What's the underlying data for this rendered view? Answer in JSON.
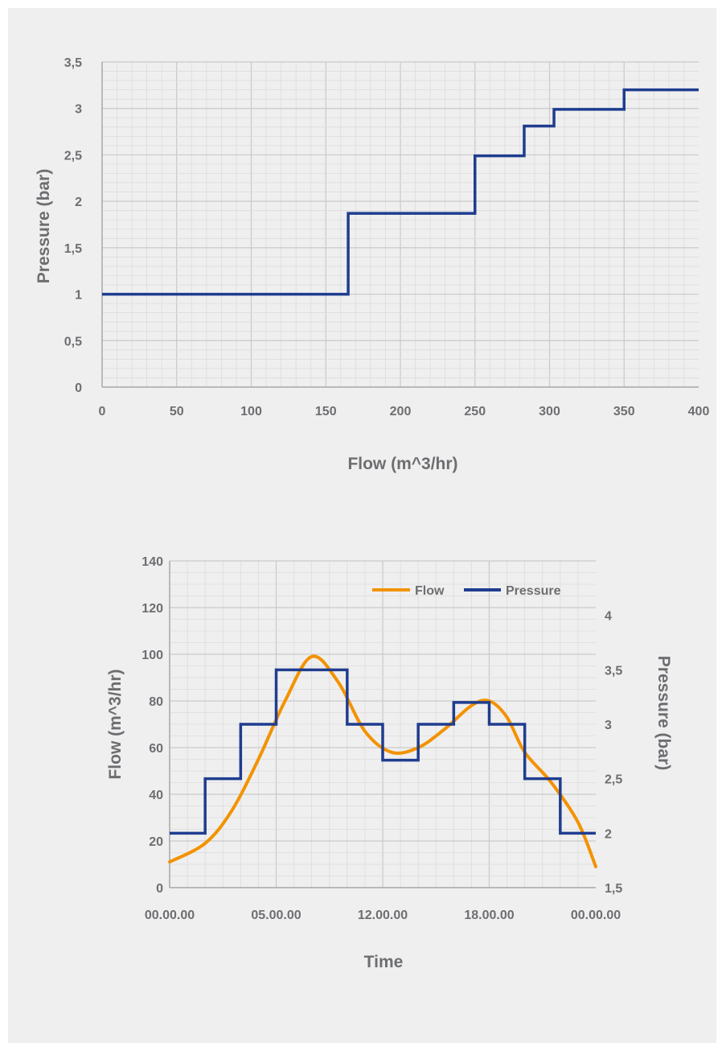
{
  "chart_data": [
    {
      "type": "line",
      "step": true,
      "xlabel": "Flow (m^3/hr)",
      "ylabel": "Pressure (bar)",
      "xlim": [
        0,
        400
      ],
      "ylim": [
        0,
        3.5
      ],
      "xticks": [
        "0",
        "50",
        "100",
        "150",
        "200",
        "250",
        "300",
        "350",
        "400"
      ],
      "yticks": [
        "0",
        "0,5",
        "1",
        "1,5",
        "2",
        "2,5",
        "3",
        "3,5"
      ],
      "grid": true,
      "series": [
        {
          "x": [
            0,
            165,
            165,
            250,
            250,
            283,
            283,
            303,
            303,
            350,
            350,
            400
          ],
          "y": [
            1.0,
            1.0,
            1.87,
            1.87,
            2.49,
            2.49,
            2.81,
            2.81,
            2.99,
            2.99,
            3.2,
            3.2
          ]
        }
      ]
    },
    {
      "type": "line",
      "xlabel": "Time",
      "ylabel": "Flow (m^3/hr)",
      "ylabel_right": "Pressure (bar)",
      "xticks": [
        "00.00.00",
        "05.00.00",
        "12.00.00",
        "18.00.00",
        "00.00.00"
      ],
      "xlim": [
        0,
        24
      ],
      "ylim": [
        0,
        140
      ],
      "ylim_right": [
        1.5,
        4.5
      ],
      "yticks": [
        "0",
        "20",
        "40",
        "60",
        "80",
        "100",
        "120",
        "140"
      ],
      "yticks_right": [
        "1,5",
        "2",
        "2,5",
        "3",
        "3,5",
        "4"
      ],
      "grid": true,
      "legend": "top-right",
      "series": [
        {
          "name": "Flow",
          "axis": "left",
          "color": "#f39200",
          "x": [
            0,
            2,
            3.5,
            5,
            6.5,
            8,
            9.5,
            11,
            12.5,
            14,
            15.5,
            17,
            18,
            19,
            20,
            21.5,
            23,
            24
          ],
          "y": [
            11,
            19,
            33,
            55,
            80,
            99,
            88,
            67,
            58,
            60,
            68,
            78,
            80,
            73,
            58,
            45,
            28,
            9
          ]
        },
        {
          "name": "Pressure",
          "axis": "right",
          "color": "#1f3d8f",
          "step": true,
          "x": [
            0,
            2,
            2,
            4,
            4,
            6,
            6,
            10,
            10,
            12,
            12,
            14,
            14,
            16,
            16,
            18,
            18,
            20,
            20,
            22,
            22,
            24
          ],
          "y": [
            2.0,
            2.0,
            2.5,
            2.5,
            3.0,
            3.0,
            3.5,
            3.5,
            3.0,
            3.0,
            2.67,
            2.67,
            3.0,
            3.0,
            3.2,
            3.2,
            3.0,
            3.0,
            2.5,
            2.5,
            2.0,
            2.0
          ]
        }
      ]
    }
  ],
  "colors": {
    "background": "#efefef",
    "grid": "#d3d3d3",
    "axis": "#a7a7a7",
    "text": "#6d6e71",
    "pressure_line": "#1f3d8f",
    "flow_line": "#f39200"
  }
}
